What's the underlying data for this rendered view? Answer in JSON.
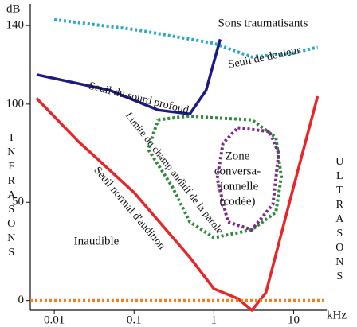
{
  "chart_data": {
    "type": "line",
    "x_scale": "log",
    "x_label": "kHz",
    "y_label": "dB",
    "xlim": [
      0.005,
      26
    ],
    "ylim": [
      -5,
      151
    ],
    "xticks": [
      0.01,
      0.1,
      1,
      10
    ],
    "yticks": [
      0,
      50,
      100,
      140
    ],
    "annotations": [
      "Sons traumatisants",
      "Inaudible",
      "INFRASONS",
      "ULTRASONS"
    ],
    "series": [
      {
        "name": "Seuil de douleur",
        "color": "#2aa8c4",
        "line_style": "dotted",
        "x": [
          0.01,
          0.1,
          1,
          3,
          10,
          20
        ],
        "values": [
          143,
          138,
          131,
          124,
          126,
          129
        ]
      },
      {
        "name": "Seuil du sourd profond",
        "color": "#1c1c80",
        "line_style": "solid",
        "x": [
          0.006,
          0.05,
          0.2,
          0.5,
          0.8,
          1.2
        ],
        "values": [
          115,
          107,
          97,
          95,
          107,
          133
        ]
      },
      {
        "name": "Seuil normal d'audition",
        "color": "#e8262a",
        "line_style": "solid",
        "x": [
          0.006,
          0.02,
          0.1,
          0.5,
          1,
          2,
          3,
          4.5,
          10,
          20
        ],
        "values": [
          103,
          81,
          55,
          22,
          6,
          1,
          -5,
          4,
          58,
          104
        ]
      },
      {
        "name": "Limite du champ auditif de la parole",
        "color": "#2e8b3a",
        "line_style": "dotted",
        "x": [
          0.2,
          0.5,
          1,
          3,
          6,
          7,
          6,
          3,
          1,
          0.5,
          0.3,
          0.15,
          0.2
        ],
        "values": [
          92,
          94,
          93,
          92,
          83,
          63,
          45,
          36,
          32,
          40,
          58,
          77,
          92
        ]
      },
      {
        "name_lines": [
          "Zone",
          "conversa-",
          "tionnelle",
          "(codée)"
        ],
        "color": "#7b2a8a",
        "line_style": "dotted",
        "x": [
          2,
          5,
          6.5,
          5.5,
          3,
          1.5,
          1.1,
          1.3,
          2
        ],
        "values": [
          88,
          86,
          75,
          49,
          36,
          40,
          62,
          80,
          88
        ]
      },
      {
        "color": "#f08020",
        "line_style": "dotted",
        "x": [
          0.005,
          26
        ],
        "values": [
          0,
          0
        ]
      }
    ]
  }
}
